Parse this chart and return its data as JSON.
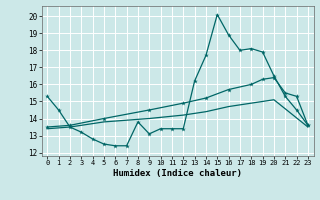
{
  "xlabel": "Humidex (Indice chaleur)",
  "bg_color": "#cce8e8",
  "line_color": "#006666",
  "grid_color": "#ffffff",
  "xlim": [
    -0.5,
    23.5
  ],
  "ylim": [
    11.8,
    20.6
  ],
  "yticks": [
    12,
    13,
    14,
    15,
    16,
    17,
    18,
    19,
    20
  ],
  "xticks": [
    0,
    1,
    2,
    3,
    4,
    5,
    6,
    7,
    8,
    9,
    10,
    11,
    12,
    13,
    14,
    15,
    16,
    17,
    18,
    19,
    20,
    21,
    22,
    23
  ],
  "line1_x": [
    0,
    1,
    2,
    3,
    4,
    5,
    6,
    7,
    8,
    9,
    10,
    11,
    12,
    13,
    14,
    15,
    16,
    17,
    18,
    19,
    20,
    21,
    22,
    23
  ],
  "line1_y": [
    15.3,
    14.5,
    13.5,
    13.2,
    12.8,
    12.5,
    12.4,
    12.4,
    13.8,
    13.1,
    13.4,
    13.4,
    13.4,
    16.2,
    17.7,
    20.1,
    18.9,
    18.0,
    18.1,
    17.9,
    16.5,
    15.3,
    14.5,
    13.6
  ],
  "line2_x": [
    0,
    2,
    5,
    9,
    12,
    14,
    16,
    18,
    19,
    20,
    21,
    22,
    23
  ],
  "line2_y": [
    13.5,
    13.6,
    14.0,
    14.5,
    14.9,
    15.2,
    15.7,
    16.0,
    16.3,
    16.4,
    15.5,
    15.3,
    13.6
  ],
  "line3_x": [
    0,
    2,
    5,
    9,
    12,
    14,
    16,
    18,
    20,
    23
  ],
  "line3_y": [
    13.4,
    13.5,
    13.8,
    14.0,
    14.2,
    14.4,
    14.7,
    14.9,
    15.1,
    13.5
  ]
}
